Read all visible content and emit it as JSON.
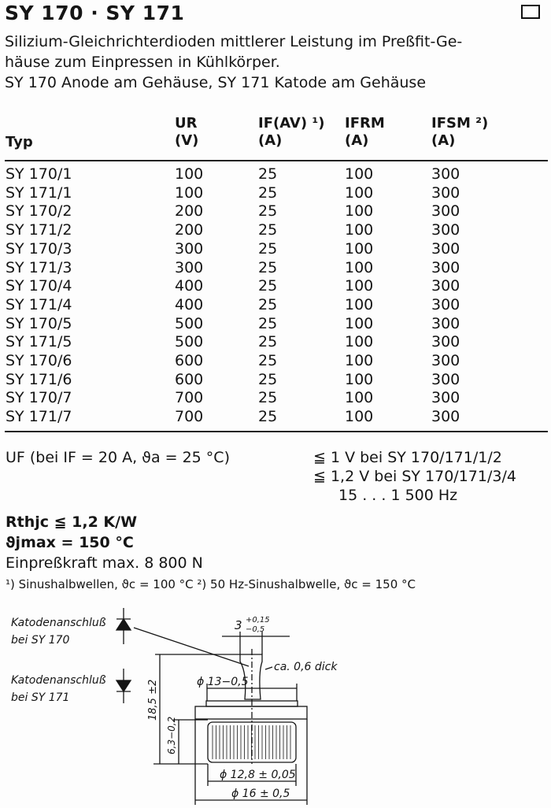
{
  "title": "SY 170 · SY 171",
  "intro": [
    "Silizium-Gleichrichterdioden mittlerer Leistung im Preßfit-Ge-",
    "häuse zum Einpressen in Kühlkörper.",
    "SY 170 Anode am Gehäuse, SY 171 Katode am Gehäuse"
  ],
  "table": {
    "headers": [
      {
        "name": "Typ",
        "unit": ""
      },
      {
        "name": "UR",
        "unit": "(V)"
      },
      {
        "name": "IF(AV) ¹)",
        "unit": "(A)"
      },
      {
        "name": "IFRM",
        "unit": "(A)"
      },
      {
        "name": "IFSM ²)",
        "unit": "(A)"
      }
    ],
    "rows": [
      [
        "SY 170/1",
        "100",
        "25",
        "100",
        "300"
      ],
      [
        "SY 171/1",
        "100",
        "25",
        "100",
        "300"
      ],
      [
        "SY 170/2",
        "200",
        "25",
        "100",
        "300"
      ],
      [
        "SY 171/2",
        "200",
        "25",
        "100",
        "300"
      ],
      [
        "SY 170/3",
        "300",
        "25",
        "100",
        "300"
      ],
      [
        "SY 171/3",
        "300",
        "25",
        "100",
        "300"
      ],
      [
        "SY 170/4",
        "400",
        "25",
        "100",
        "300"
      ],
      [
        "SY 171/4",
        "400",
        "25",
        "100",
        "300"
      ],
      [
        "SY 170/5",
        "500",
        "25",
        "100",
        "300"
      ],
      [
        "SY 171/5",
        "500",
        "25",
        "100",
        "300"
      ],
      [
        "SY 170/6",
        "600",
        "25",
        "100",
        "300"
      ],
      [
        "SY 171/6",
        "600",
        "25",
        "100",
        "300"
      ],
      [
        "SY 170/7",
        "700",
        "25",
        "100",
        "300"
      ],
      [
        "SY 171/7",
        "700",
        "25",
        "100",
        "300"
      ]
    ]
  },
  "specs": {
    "uf_label": "UF  (bei IF = 20 A, ϑa = 25 °C)",
    "uf_values": [
      "≦ 1 V bei SY 170/171/1/2",
      "≦ 1,2 V bei SY 170/171/3/4",
      "15 . . . 1 500 Hz"
    ],
    "rthjc": "Rthjc ≦ 1,2 K/W",
    "tjmax": "ϑjmax  = 150 °C",
    "force": "Einpreßkraft max. 8 800 N",
    "footnotes": "¹)  Sinushalbwellen, ϑc = 100 °C   ²)  50 Hz-Sinushalbwelle, ϑc = 150 °C"
  },
  "drawing": {
    "cathode_sy170": [
      "Katodenanschluß",
      "bei SY 170"
    ],
    "cathode_sy171": [
      "Katodenanschluß",
      "bei SY 171"
    ],
    "dim_width": "3",
    "dim_width_tol": [
      "+0,15",
      "−0,5"
    ],
    "thickness": "ca. 0,6 dick",
    "dim_d13": "ϕ 13−0,5",
    "dim_height": "18,5 ±2",
    "dim_body": "6,3−0,2",
    "dim_d128": "ϕ 12,8 ± 0,05",
    "dim_d16": "ϕ 16 ± 0,5"
  }
}
